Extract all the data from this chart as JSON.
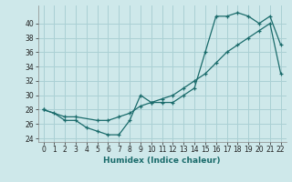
{
  "xlabel": "Humidex (Indice chaleur)",
  "bg_color": "#cee8ea",
  "grid_color": "#aad0d4",
  "line_color": "#1a6b6b",
  "xlim": [
    -0.5,
    22.5
  ],
  "ylim": [
    23.5,
    42.5
  ],
  "xticks": [
    0,
    1,
    2,
    3,
    4,
    5,
    6,
    7,
    8,
    9,
    10,
    11,
    12,
    13,
    14,
    15,
    16,
    17,
    18,
    19,
    20,
    21,
    22
  ],
  "yticks": [
    24,
    26,
    28,
    30,
    32,
    34,
    36,
    38,
    40
  ],
  "line1_x": [
    0,
    1,
    2,
    3,
    4,
    5,
    6,
    7,
    8,
    9,
    10,
    11,
    12,
    13,
    14,
    15,
    16,
    17,
    18,
    19,
    20,
    21,
    22
  ],
  "line1_y": [
    28,
    27.5,
    26.5,
    26.5,
    25.5,
    25,
    24.5,
    24.5,
    26.5,
    30,
    29,
    29,
    29,
    30,
    31,
    36,
    41,
    41,
    41.5,
    41,
    40,
    41,
    37
  ],
  "line2_x": [
    0,
    2,
    3,
    5,
    6,
    7,
    8,
    9,
    10,
    11,
    12,
    13,
    14,
    15,
    16,
    17,
    18,
    19,
    20,
    21,
    22
  ],
  "line2_y": [
    28,
    27,
    27,
    26.5,
    26.5,
    27,
    27.5,
    28.5,
    29,
    29.5,
    30,
    31,
    32,
    33,
    34.5,
    36,
    37,
    38,
    39,
    40,
    33
  ]
}
